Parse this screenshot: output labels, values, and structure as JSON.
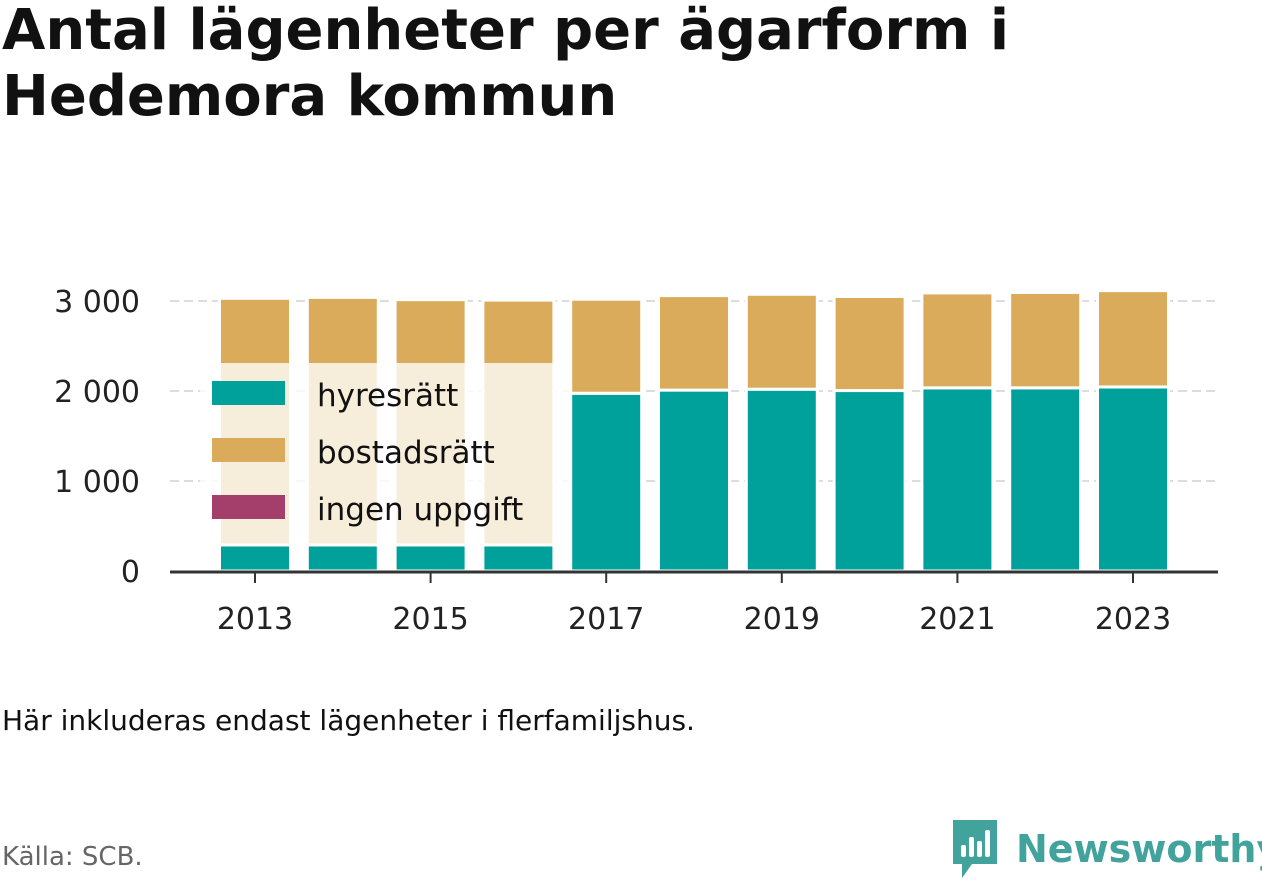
{
  "title": "Antal lägenheter per ägarform i Hedemora kommun",
  "note": "Här inkluderas endast lägenheter i flerfamiljshus.",
  "source": "Källa: SCB.",
  "brand": {
    "name": "Newsworthy",
    "icon": "bar-chart-speech-bubble-icon",
    "color": "#41a39c"
  },
  "chart_data": {
    "type": "bar",
    "stacked": true,
    "categories": [
      "2013",
      "2014",
      "2015",
      "2016",
      "2017",
      "2018",
      "2019",
      "2020",
      "2021",
      "2022",
      "2023"
    ],
    "x_tick_labels": [
      "2013",
      "2015",
      "2017",
      "2019",
      "2021",
      "2023"
    ],
    "series": [
      {
        "name": "hyresrätt",
        "color": "#00a19a",
        "values": [
          290,
          290,
          290,
          290,
          1975,
          2010,
          2020,
          2005,
          2035,
          2035,
          2045
        ]
      },
      {
        "name": "bostadsrätt",
        "color": "#daab5a",
        "values": [
          2740,
          2750,
          2725,
          2720,
          1045,
          1050,
          1055,
          1045,
          1055,
          1060,
          1070
        ]
      },
      {
        "name": "ingen uppgift",
        "color": "#a33f6a",
        "values": [
          0,
          0,
          0,
          0,
          0,
          0,
          0,
          0,
          0,
          0,
          0
        ]
      }
    ],
    "y_ticks": [
      0,
      1000,
      2000,
      3000
    ],
    "y_tick_labels": [
      "0",
      "1 000",
      "2 000",
      "3 000"
    ],
    "ylim": [
      0,
      3000
    ],
    "grid": true,
    "legend_position": "top-left inside"
  }
}
